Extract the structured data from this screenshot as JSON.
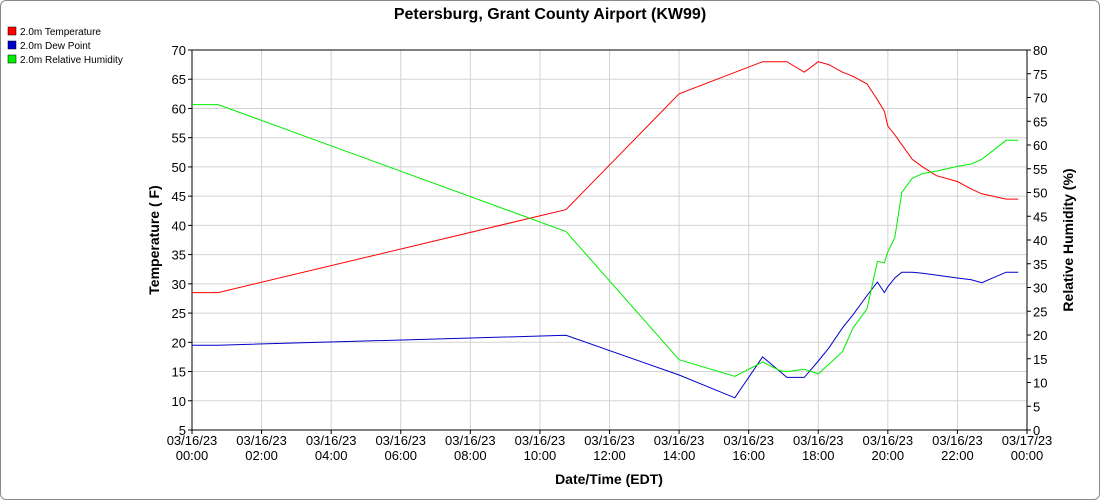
{
  "chart_data": {
    "type": "line",
    "title": "Petersburg, Grant County Airport (KW99)",
    "xlabel": "Date/Time (EDT)",
    "ylabel": "Temperature ( F)",
    "y2label": "Relative Humidity (%)",
    "xlim": [
      0,
      24
    ],
    "ylim": [
      5,
      70
    ],
    "y2lim": [
      0,
      80
    ],
    "x_ticks": [
      {
        "value": 0,
        "date": "03/16/23",
        "time": "00:00"
      },
      {
        "value": 2,
        "date": "03/16/23",
        "time": "02:00"
      },
      {
        "value": 4,
        "date": "03/16/23",
        "time": "04:00"
      },
      {
        "value": 6,
        "date": "03/16/23",
        "time": "06:00"
      },
      {
        "value": 8,
        "date": "03/16/23",
        "time": "08:00"
      },
      {
        "value": 10,
        "date": "03/16/23",
        "time": "10:00"
      },
      {
        "value": 12,
        "date": "03/16/23",
        "time": "12:00"
      },
      {
        "value": 14,
        "date": "03/16/23",
        "time": "14:00"
      },
      {
        "value": 16,
        "date": "03/16/23",
        "time": "16:00"
      },
      {
        "value": 18,
        "date": "03/16/23",
        "time": "18:00"
      },
      {
        "value": 20,
        "date": "03/16/23",
        "time": "20:00"
      },
      {
        "value": 22,
        "date": "03/16/23",
        "time": "22:00"
      },
      {
        "value": 24,
        "date": "03/17/23",
        "time": "00:00"
      }
    ],
    "y_ticks": [
      5,
      10,
      15,
      20,
      25,
      30,
      35,
      40,
      45,
      50,
      55,
      60,
      65,
      70
    ],
    "y2_ticks": [
      0,
      5,
      10,
      15,
      20,
      25,
      30,
      35,
      40,
      45,
      50,
      55,
      60,
      65,
      70,
      75,
      80
    ],
    "grid": true,
    "legend_position": "top-left",
    "series": [
      {
        "name": "2.0m Temperature",
        "color": "#ff0000",
        "axis": "left",
        "x": [
          0,
          0.75,
          10.75,
          14,
          16.4,
          16.9,
          17.1,
          17.6,
          18.0,
          18.3,
          18.7,
          19.0,
          19.4,
          19.7,
          19.9,
          20.0,
          20.2,
          20.4,
          20.7,
          21.0,
          21.4,
          22.0,
          22.4,
          22.7,
          23.4,
          23.75
        ],
        "y": [
          28.5,
          28.5,
          42.7,
          62.5,
          68,
          68,
          68,
          66.2,
          68,
          67.5,
          66.2,
          65.5,
          64.2,
          61.5,
          59.5,
          57.0,
          55.5,
          53.8,
          51.3,
          50.0,
          48.5,
          47.5,
          46.2,
          45.4,
          44.5,
          44.5
        ]
      },
      {
        "name": "2.0m Dew Point",
        "color": "#0000cc",
        "axis": "left",
        "x": [
          0,
          0.75,
          10.75,
          14,
          15.6,
          16.4,
          16.9,
          17.1,
          17.6,
          18.0,
          18.3,
          18.7,
          19.0,
          19.4,
          19.7,
          19.9,
          20.0,
          20.2,
          20.4,
          20.7,
          21.0,
          21.4,
          22.0,
          22.4,
          22.7,
          23.4,
          23.75
        ],
        "y": [
          19.5,
          19.5,
          21.2,
          14.4,
          10.5,
          17.5,
          15.0,
          14.0,
          14.0,
          16.8,
          19.0,
          22.5,
          24.7,
          28.0,
          30.3,
          28.5,
          29.5,
          31.0,
          32.0,
          32.0,
          31.8,
          31.5,
          31.0,
          30.7,
          30.2,
          32.0,
          32.0
        ]
      },
      {
        "name": "2.0m Relative Humidity",
        "color": "#00ee00",
        "axis": "right",
        "x": [
          0,
          0.75,
          10.75,
          14,
          15.6,
          16.4,
          16.9,
          17.1,
          17.6,
          18.0,
          18.3,
          18.7,
          19.0,
          19.4,
          19.7,
          19.9,
          20.0,
          20.2,
          20.4,
          20.7,
          21.0,
          21.4,
          22.0,
          22.4,
          22.7,
          23.4,
          23.75
        ],
        "y": [
          68.5,
          68.5,
          41.8,
          14.8,
          11.3,
          14.3,
          12.5,
          12.3,
          12.8,
          11.8,
          13.8,
          16.5,
          21.5,
          25.5,
          35.5,
          35.2,
          37.5,
          40.5,
          50.0,
          53.0,
          54.0,
          54.5,
          55.5,
          56.0,
          57.0,
          61.0,
          61.0
        ]
      }
    ]
  }
}
